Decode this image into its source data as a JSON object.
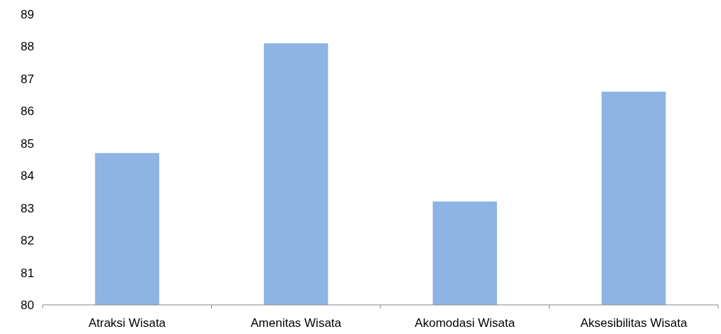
{
  "chart_data": {
    "type": "bar",
    "categories": [
      "Atraksi Wisata",
      "Amenitas Wisata",
      "Akomodasi Wisata",
      "Aksesibilitas Wisata"
    ],
    "values": [
      84.7,
      88.1,
      83.2,
      86.6
    ],
    "color": "#8db4e2",
    "ylim": [
      80,
      89
    ],
    "yticks": [
      80,
      81,
      82,
      83,
      84,
      85,
      86,
      87,
      88,
      89
    ]
  }
}
